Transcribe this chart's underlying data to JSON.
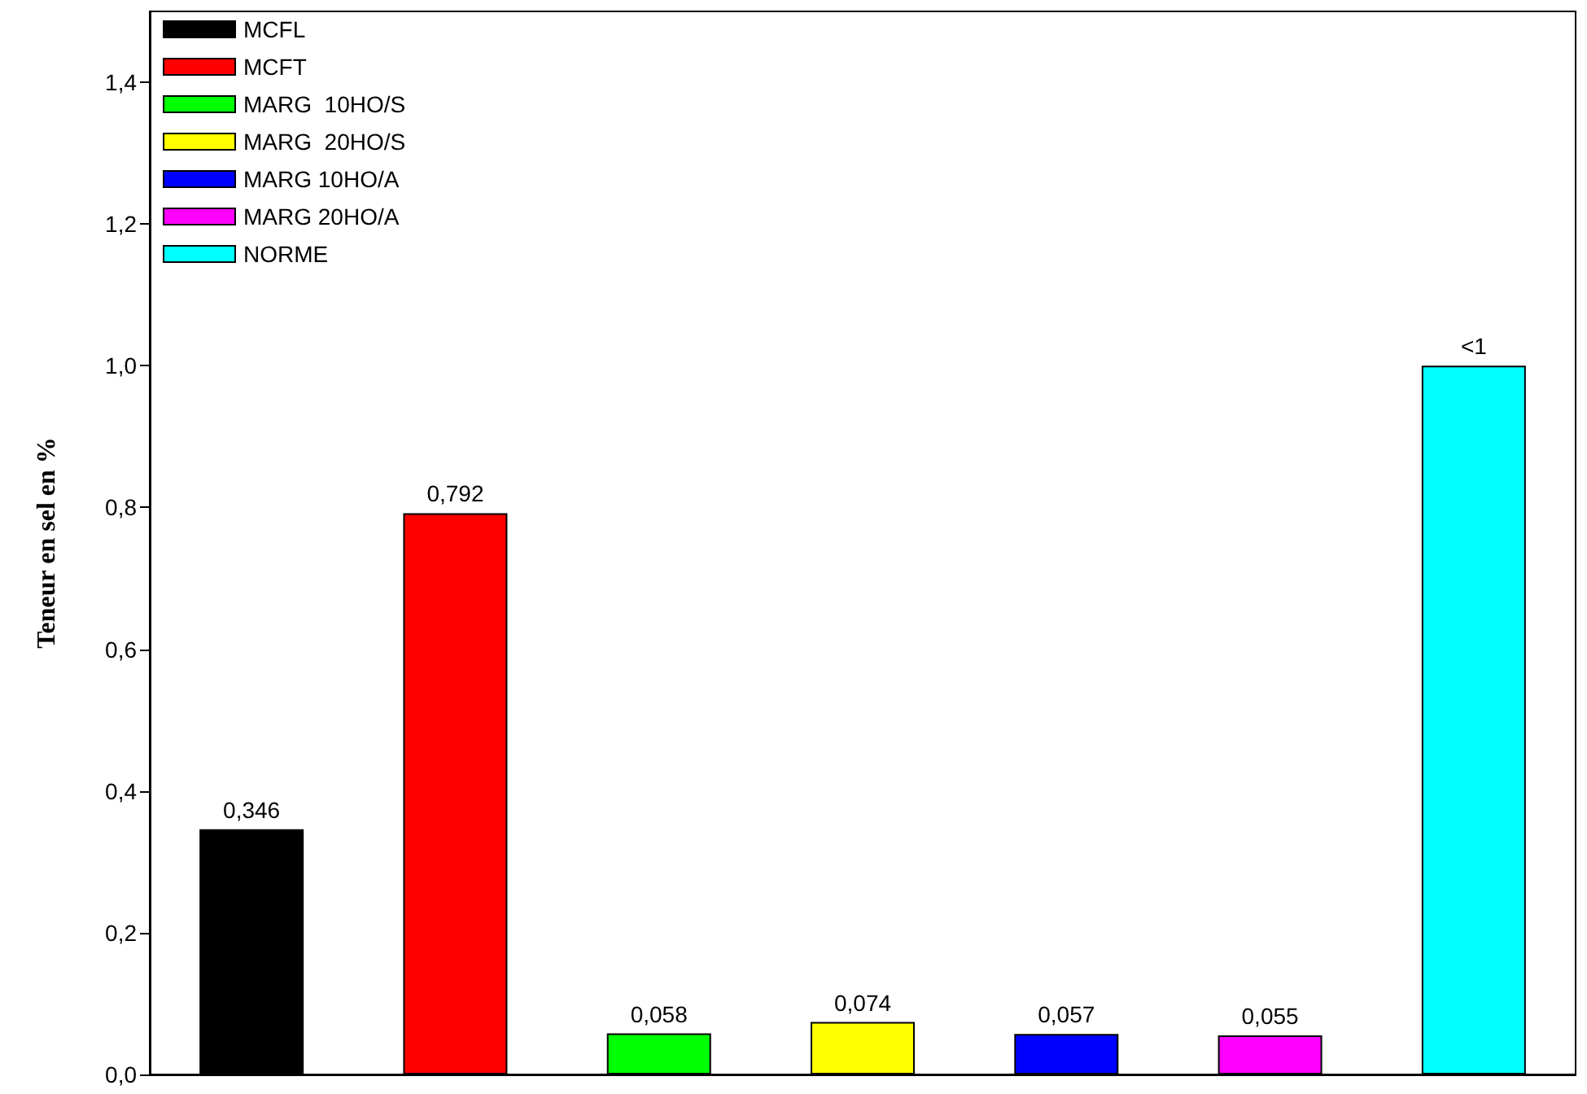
{
  "chart_data": {
    "type": "bar",
    "ylabel": "Teneur en sel en %",
    "categories": [
      null,
      null,
      null,
      null,
      null,
      null,
      null
    ],
    "series": [
      {
        "name": "MCFL",
        "color": "#000000",
        "values": [
          0.346,
          null,
          null,
          null,
          null,
          null,
          null
        ],
        "value_labels": [
          "0,346",
          null,
          null,
          null,
          null,
          null,
          null
        ]
      },
      {
        "name": "MCFT",
        "color": "#ff0000",
        "values": [
          null,
          0.792,
          null,
          null,
          null,
          null,
          null
        ],
        "value_labels": [
          null,
          "0,792",
          null,
          null,
          null,
          null,
          null
        ]
      },
      {
        "name": "MARG  10HO/S",
        "color": "#00ff00",
        "values": [
          null,
          null,
          0.058,
          null,
          null,
          null,
          null
        ],
        "value_labels": [
          null,
          null,
          "0,058",
          null,
          null,
          null,
          null
        ]
      },
      {
        "name": "MARG  20HO/S",
        "color": "#ffff00",
        "values": [
          null,
          null,
          null,
          0.074,
          null,
          null,
          null
        ],
        "value_labels": [
          null,
          null,
          null,
          "0,074",
          null,
          null,
          null
        ]
      },
      {
        "name": "MARG 10HO/A",
        "color": "#0000ff",
        "values": [
          null,
          null,
          null,
          null,
          0.057,
          null,
          null
        ],
        "value_labels": [
          null,
          null,
          null,
          null,
          "0,057",
          null,
          null
        ]
      },
      {
        "name": "MARG 20HO/A",
        "color": "#ff00ff",
        "values": [
          null,
          null,
          null,
          null,
          null,
          0.055,
          null
        ],
        "value_labels": [
          null,
          null,
          null,
          null,
          null,
          "0,055",
          null
        ]
      },
      {
        "name": "NORME",
        "color": "#00ffff",
        "values": [
          null,
          null,
          null,
          null,
          null,
          null,
          1.0
        ],
        "value_labels": [
          null,
          null,
          null,
          null,
          null,
          null,
          "<1"
        ]
      }
    ],
    "ylim": [
      0,
      1.5
    ],
    "yticks": [
      {
        "value": 0,
        "label": "0,0"
      },
      {
        "value": 0.2,
        "label": "0,2"
      },
      {
        "value": 0.4,
        "label": "0,4"
      },
      {
        "value": 0.6,
        "label": "0,6"
      },
      {
        "value": 0.8,
        "label": "0,8"
      },
      {
        "value": 1.0,
        "label": "1,0"
      },
      {
        "value": 1.2,
        "label": "1,2"
      },
      {
        "value": 1.4,
        "label": "1,4"
      }
    ],
    "tick_labels": "y",
    "grid": false,
    "legend": "top left"
  }
}
